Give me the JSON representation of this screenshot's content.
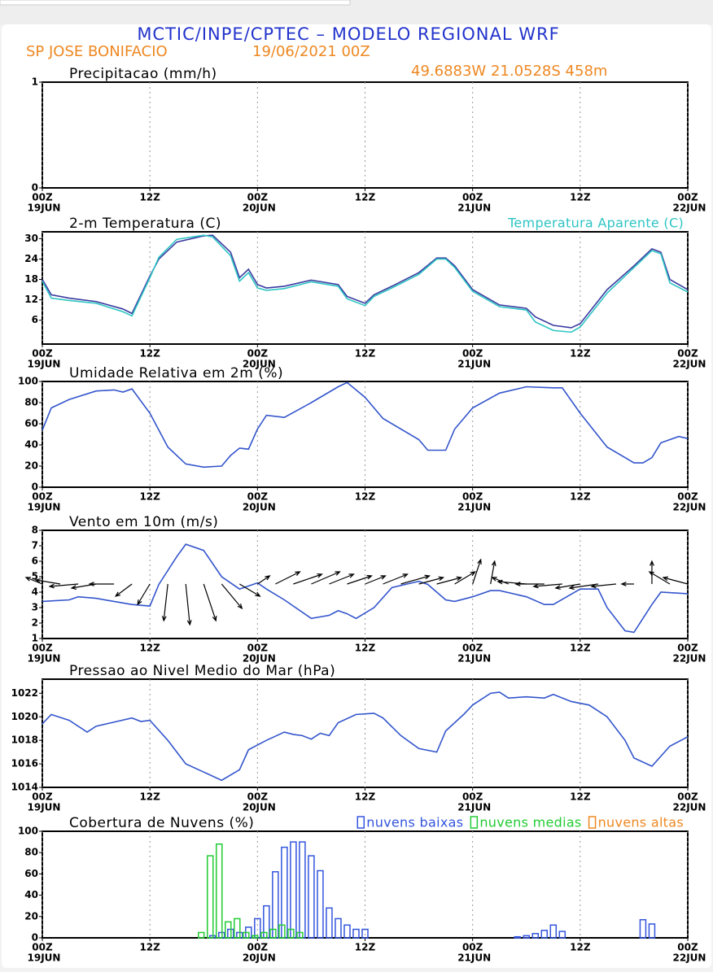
{
  "header": {
    "title": "MCTIC/INPE/CPTEC – MODELO REGIONAL WRF",
    "location": "SP JOSE BONIFACIO",
    "date": "19/06/2021 00Z",
    "coords": "49.6883W 21.0528S 458m"
  },
  "chart_data": [
    {
      "type": "line",
      "title": "Precipitacao (mm/h)",
      "xlim": [
        0,
        72
      ],
      "ylim": [
        0,
        1
      ],
      "yticks": [
        0,
        1
      ],
      "grid": true,
      "xticks": [
        {
          "value": 0,
          "label": "00Z"
        },
        {
          "value": 12,
          "label": "12Z"
        },
        {
          "value": 24,
          "label": "00Z"
        },
        {
          "value": 36,
          "label": "12Z"
        },
        {
          "value": 48,
          "label": "00Z"
        },
        {
          "value": 60,
          "label": "12Z"
        },
        {
          "value": 72,
          "label": "00Z"
        }
      ],
      "xdates": [
        {
          "value": 0,
          "label": "19JUN"
        },
        {
          "value": 24,
          "label": "20JUN"
        },
        {
          "value": 48,
          "label": "21JUN"
        },
        {
          "value": 72,
          "label": "22JUN"
        }
      ],
      "series": []
    },
    {
      "type": "line",
      "title": "2-m Temperatura (C)",
      "xlim": [
        0,
        72
      ],
      "ylim": [
        -1,
        32
      ],
      "yticks": [
        6,
        12,
        18,
        24,
        30
      ],
      "grid": true,
      "legend": "top-right",
      "xticks": [
        {
          "value": 0,
          "label": "00Z"
        },
        {
          "value": 12,
          "label": "12Z"
        },
        {
          "value": 24,
          "label": "00Z"
        },
        {
          "value": 36,
          "label": "12Z"
        },
        {
          "value": 48,
          "label": "00Z"
        },
        {
          "value": 60,
          "label": "12Z"
        },
        {
          "value": 72,
          "label": "00Z"
        }
      ],
      "xdates": [
        {
          "value": 0,
          "label": "19JUN"
        },
        {
          "value": 24,
          "label": "20JUN"
        },
        {
          "value": 48,
          "label": "21JUN"
        },
        {
          "value": 72,
          "label": "22JUN"
        }
      ],
      "x": [
        0,
        1,
        3,
        6,
        9,
        10,
        12,
        13,
        15,
        18,
        19,
        21,
        22,
        23,
        24,
        25,
        27,
        30,
        33,
        34,
        36,
        37,
        39,
        42,
        44,
        45,
        46,
        48,
        51,
        54,
        55,
        57,
        59,
        60,
        63,
        66,
        68,
        69,
        70,
        72
      ],
      "series": [
        {
          "color": "#3a3aa0",
          "values": [
            18,
            13.5,
            12.5,
            11.5,
            9.3,
            8,
            19,
            24,
            29,
            30.8,
            31,
            26,
            18.5,
            21,
            16.5,
            15.5,
            16,
            17.8,
            16.5,
            13,
            11,
            13.5,
            16,
            20,
            24.3,
            24.3,
            22,
            15,
            10.5,
            9.5,
            7,
            4.5,
            3.8,
            5,
            15,
            22,
            27,
            26,
            18,
            15
          ]
        },
        {
          "name": "Temperatura Aparente (C)",
          "color": "#2ec4c4",
          "values": [
            17.5,
            12.5,
            11.8,
            11,
            8.5,
            7.3,
            18.5,
            24.5,
            29.8,
            31,
            30.5,
            25,
            17.5,
            20,
            15.5,
            14.8,
            15.3,
            17.3,
            16,
            12.3,
            10.3,
            13,
            15.5,
            19.5,
            24,
            24,
            21.5,
            14.5,
            10,
            9,
            5.5,
            3,
            2.5,
            4,
            14,
            21.5,
            26.5,
            25.5,
            17,
            14.3
          ]
        }
      ]
    },
    {
      "type": "line",
      "title": "Umidade Relativa em 2m (%)",
      "xlim": [
        0,
        72
      ],
      "ylim": [
        0,
        100
      ],
      "yticks": [
        0,
        20,
        40,
        60,
        80,
        100
      ],
      "grid": true,
      "xticks": [
        {
          "value": 0,
          "label": "00Z"
        },
        {
          "value": 12,
          "label": "12Z"
        },
        {
          "value": 24,
          "label": "00Z"
        },
        {
          "value": 36,
          "label": "12Z"
        },
        {
          "value": 48,
          "label": "00Z"
        },
        {
          "value": 60,
          "label": "12Z"
        },
        {
          "value": 72,
          "label": "00Z"
        }
      ],
      "xdates": [
        {
          "value": 0,
          "label": "19JUN"
        },
        {
          "value": 24,
          "label": "20JUN"
        },
        {
          "value": 48,
          "label": "21JUN"
        },
        {
          "value": 72,
          "label": "22JUN"
        }
      ],
      "x": [
        0,
        1,
        3,
        6,
        8,
        9,
        10,
        12,
        14,
        16,
        18,
        20,
        21,
        22,
        23,
        24,
        25,
        27,
        30,
        33,
        34,
        36,
        38,
        42,
        43,
        45,
        46,
        48,
        51,
        54,
        57,
        58,
        60,
        63,
        66,
        67,
        68,
        69,
        71,
        72
      ],
      "series": [
        {
          "color": "#3355cc",
          "values": [
            54,
            75,
            83,
            91,
            92,
            90,
            93,
            70,
            38,
            22,
            19,
            20,
            30,
            37,
            36,
            55,
            68,
            66,
            80,
            95,
            99,
            85,
            65,
            45,
            35,
            35,
            55,
            75,
            89,
            95,
            94,
            94,
            70,
            38,
            23,
            23,
            28,
            42,
            48,
            46
          ]
        }
      ]
    },
    {
      "type": "line",
      "title": "Vento em 10m (m/s)",
      "xlim": [
        0,
        72
      ],
      "ylim": [
        1,
        8
      ],
      "yticks": [
        1,
        2,
        3,
        4,
        5,
        6,
        7,
        8
      ],
      "grid": true,
      "xticks": [
        {
          "value": 0,
          "label": "00Z"
        },
        {
          "value": 12,
          "label": "12Z"
        },
        {
          "value": 24,
          "label": "00Z"
        },
        {
          "value": 36,
          "label": "12Z"
        },
        {
          "value": 48,
          "label": "00Z"
        },
        {
          "value": 60,
          "label": "12Z"
        },
        {
          "value": 72,
          "label": "00Z"
        }
      ],
      "xdates": [
        {
          "value": 0,
          "label": "19JUN"
        },
        {
          "value": 24,
          "label": "20JUN"
        },
        {
          "value": 48,
          "label": "21JUN"
        },
        {
          "value": 72,
          "label": "22JUN"
        }
      ],
      "x": [
        0,
        3,
        4,
        6,
        8,
        10,
        12,
        13,
        15,
        16,
        18,
        20,
        22,
        24,
        25,
        27,
        30,
        32,
        33,
        34,
        35,
        37,
        39,
        42,
        43,
        45,
        46,
        48,
        50,
        51,
        54,
        56,
        57,
        60,
        62,
        63,
        65,
        66,
        68,
        69,
        72
      ],
      "series": [
        {
          "color": "#3355cc",
          "values": [
            3.4,
            3.5,
            3.7,
            3.6,
            3.4,
            3.2,
            3.1,
            4.5,
            6.3,
            7.1,
            6.7,
            5,
            4.2,
            4.6,
            4.2,
            3.5,
            2.3,
            2.5,
            2.8,
            2.6,
            2.3,
            3,
            4.3,
            4.7,
            4.5,
            3.5,
            3.4,
            3.7,
            4.1,
            4.1,
            3.7,
            3.2,
            3.2,
            4.2,
            4.2,
            3,
            1.5,
            1.4,
            3.2,
            4,
            3.9
          ]
        }
      ],
      "vectors": {
        "color": "#000000",
        "x": [
          0,
          2,
          4,
          6,
          8,
          10,
          12,
          14,
          16,
          18,
          20,
          22,
          24,
          26,
          28,
          30,
          32,
          34,
          36,
          38,
          40,
          42,
          44,
          46,
          48,
          50,
          52,
          54,
          56,
          58,
          60,
          62,
          64,
          66,
          68,
          70,
          72
        ],
        "u": [
          -2,
          -3,
          -3.5,
          -3,
          -3,
          -2,
          -1.5,
          -0.5,
          0.5,
          1.5,
          2.5,
          2.5,
          1.5,
          3,
          3.5,
          3.5,
          3,
          3,
          2.5,
          3,
          3.5,
          3,
          3,
          2.5,
          1,
          0.5,
          -2,
          -3.5,
          -3.5,
          -3.5,
          -3,
          -3.5,
          -3,
          -1.5,
          0,
          -2.5,
          -3
        ],
        "v": [
          0.8,
          0.5,
          -0.3,
          -0.5,
          0,
          -1.5,
          -2.5,
          -4.5,
          -5,
          -4.5,
          -3,
          -1.5,
          1,
          1.5,
          1.2,
          1.5,
          1.2,
          1,
          1,
          1.2,
          1,
          0.8,
          0.8,
          1.5,
          3,
          2.8,
          0.8,
          0.3,
          0,
          -0.3,
          -0.5,
          -0.5,
          -0.3,
          0,
          2.8,
          1.5,
          0.8
        ]
      }
    },
    {
      "type": "line",
      "title": "Pressao ao Nivel Medio do Mar (hPa)",
      "xlim": [
        0,
        72
      ],
      "ylim": [
        1014,
        1023.2
      ],
      "yticks": [
        1014,
        1016,
        1018,
        1020,
        1022
      ],
      "grid": true,
      "xticks": [
        {
          "value": 0,
          "label": "00Z"
        },
        {
          "value": 12,
          "label": "12Z"
        },
        {
          "value": 24,
          "label": "00Z"
        },
        {
          "value": 36,
          "label": "12Z"
        },
        {
          "value": 48,
          "label": "00Z"
        },
        {
          "value": 60,
          "label": "12Z"
        },
        {
          "value": 72,
          "label": "00Z"
        }
      ],
      "xdates": [
        {
          "value": 0,
          "label": "19JUN"
        },
        {
          "value": 24,
          "label": "20JUN"
        },
        {
          "value": 48,
          "label": "21JUN"
        },
        {
          "value": 72,
          "label": "22JUN"
        }
      ],
      "x": [
        0,
        1,
        3,
        5,
        6,
        10,
        11,
        12,
        14,
        15,
        16,
        18,
        20,
        22,
        23,
        24,
        25,
        27,
        28,
        29,
        30,
        31,
        32,
        33,
        35,
        37,
        38,
        40,
        42,
        44,
        45,
        47,
        48,
        50,
        51,
        52,
        54,
        56,
        57,
        59,
        61,
        63,
        65,
        66,
        68,
        70,
        72
      ],
      "series": [
        {
          "color": "#3355cc",
          "values": [
            1019.4,
            1020.2,
            1019.7,
            1018.7,
            1019.2,
            1019.9,
            1019.6,
            1019.7,
            1018,
            1017,
            1016,
            1015.3,
            1014.6,
            1015.5,
            1017.2,
            1017.6,
            1018,
            1018.7,
            1018.5,
            1018.4,
            1018.1,
            1018.6,
            1018.4,
            1019.5,
            1020.2,
            1020.3,
            1019.9,
            1018.4,
            1017.3,
            1017,
            1018.8,
            1020.2,
            1021,
            1022,
            1022.1,
            1021.6,
            1021.7,
            1021.6,
            1021.9,
            1021.3,
            1021,
            1020,
            1018,
            1016.5,
            1015.8,
            1017.5,
            1018.3
          ]
        }
      ]
    },
    {
      "type": "bar",
      "title": "Cobertura de Nuvens (%)",
      "xlim": [
        0,
        72
      ],
      "ylim": [
        0,
        100
      ],
      "yticks": [
        0,
        20,
        40,
        60,
        80,
        100
      ],
      "grid": true,
      "legend": "top-right",
      "xticks": [
        {
          "value": 0,
          "label": "00Z"
        },
        {
          "value": 12,
          "label": "12Z"
        },
        {
          "value": 24,
          "label": "00Z"
        },
        {
          "value": 36,
          "label": "12Z"
        },
        {
          "value": 48,
          "label": "00Z"
        },
        {
          "value": 60,
          "label": "12Z"
        },
        {
          "value": 72,
          "label": "00Z"
        }
      ],
      "xdates": [
        {
          "value": 0,
          "label": "19JUN"
        },
        {
          "value": 24,
          "label": "20JUN"
        },
        {
          "value": 48,
          "label": "21JUN"
        },
        {
          "value": 72,
          "label": "22JUN"
        }
      ],
      "x": [
        17,
        18,
        19,
        20,
        21,
        22,
        23,
        24,
        25,
        26,
        27,
        28,
        29,
        30,
        31,
        32,
        33,
        34,
        35,
        36,
        53,
        54,
        55,
        56,
        57,
        58,
        66,
        67,
        68
      ],
      "series": [
        {
          "name": "nuvens baixas",
          "color": "#3355dd",
          "values": [
            0,
            0,
            2,
            5,
            8,
            5,
            10,
            18,
            30,
            62,
            85,
            90,
            90,
            77,
            63,
            28,
            18,
            12,
            8,
            8,
            1,
            2,
            4,
            7,
            12,
            6,
            0,
            17,
            13
          ]
        },
        {
          "name": "nuvens medias",
          "color": "#22cc33",
          "values": [
            0,
            5,
            77,
            88,
            15,
            18,
            5,
            2,
            5,
            8,
            12,
            8,
            5,
            0,
            0,
            0,
            0,
            0,
            0,
            0,
            0,
            0,
            0,
            0,
            0,
            0,
            0,
            0,
            0
          ]
        },
        {
          "name": "nuvens altas",
          "color": "#ee8822",
          "values": [
            0,
            0,
            0,
            0,
            0,
            0,
            0,
            0,
            0,
            0,
            0,
            0,
            0,
            0,
            0,
            0,
            0,
            0,
            0,
            0,
            0,
            0,
            0,
            0,
            0,
            0,
            0,
            0,
            0
          ]
        }
      ]
    }
  ]
}
